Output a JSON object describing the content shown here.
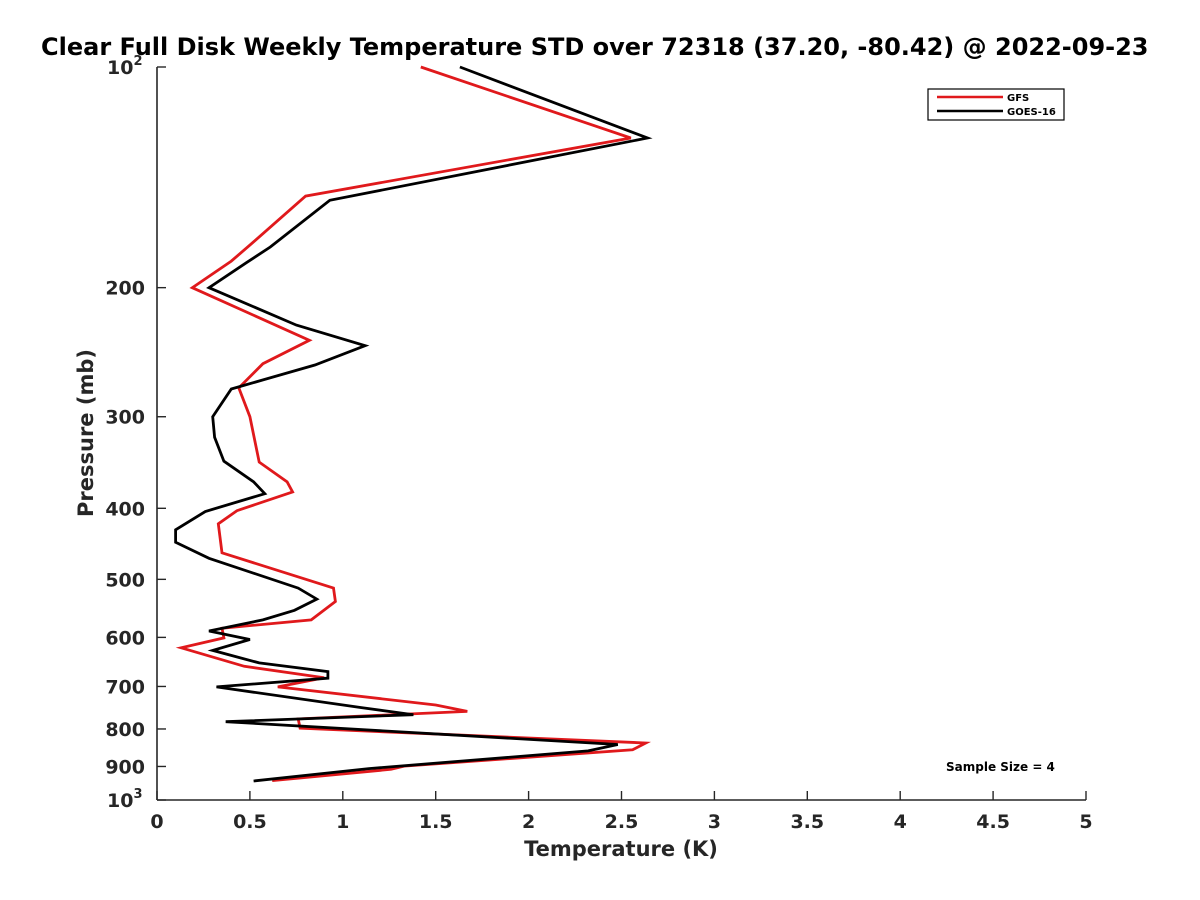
{
  "chart_data": {
    "type": "line",
    "title": "Clear Full Disk Weekly Temperature STD over 72318 (37.20, -80.42) @ 2022-09-23",
    "xlabel": "Temperature (K)",
    "ylabel": "Pressure (mb)",
    "xlim": [
      0,
      5
    ],
    "ylim": [
      100,
      1000
    ],
    "yscale": "log",
    "y_reversed": true,
    "x_ticks": [
      "0",
      "0.5",
      "1",
      "1.5",
      "2",
      "2.5",
      "3",
      "3.5",
      "4",
      "4.5",
      "5"
    ],
    "y_ticks": [
      {
        "value": 100,
        "base": "10",
        "exp": "2"
      },
      {
        "value": 200,
        "label": "200"
      },
      {
        "value": 300,
        "label": "300"
      },
      {
        "value": 400,
        "label": "400"
      },
      {
        "value": 500,
        "label": "500"
      },
      {
        "value": 600,
        "label": "600"
      },
      {
        "value": 700,
        "label": "700"
      },
      {
        "value": 800,
        "label": "800"
      },
      {
        "value": 900,
        "label": "900"
      },
      {
        "value": 1000,
        "base": "10",
        "exp": "3"
      }
    ],
    "grid": false,
    "legend_position": "top-right",
    "annotation": "Sample Size = 4",
    "series": [
      {
        "name": "GFS",
        "color": "#e0191c",
        "points": [
          {
            "x": 1.42,
            "p": 100
          },
          {
            "x": 2.55,
            "p": 125
          },
          {
            "x": 0.8,
            "p": 150
          },
          {
            "x": 0.5,
            "p": 175
          },
          {
            "x": 0.4,
            "p": 184
          },
          {
            "x": 0.19,
            "p": 200
          },
          {
            "x": 0.82,
            "p": 236
          },
          {
            "x": 0.57,
            "p": 254
          },
          {
            "x": 0.44,
            "p": 274
          },
          {
            "x": 0.5,
            "p": 300
          },
          {
            "x": 0.55,
            "p": 346
          },
          {
            "x": 0.7,
            "p": 368
          },
          {
            "x": 0.73,
            "p": 380
          },
          {
            "x": 0.43,
            "p": 403
          },
          {
            "x": 0.33,
            "p": 420
          },
          {
            "x": 0.35,
            "p": 460
          },
          {
            "x": 0.95,
            "p": 514
          },
          {
            "x": 0.96,
            "p": 536
          },
          {
            "x": 0.83,
            "p": 568
          },
          {
            "x": 0.35,
            "p": 583
          },
          {
            "x": 0.36,
            "p": 601
          },
          {
            "x": 0.13,
            "p": 620
          },
          {
            "x": 0.47,
            "p": 657
          },
          {
            "x": 0.9,
            "p": 681
          },
          {
            "x": 0.65,
            "p": 701
          },
          {
            "x": 1.5,
            "p": 742
          },
          {
            "x": 1.67,
            "p": 757
          },
          {
            "x": 0.76,
            "p": 775
          },
          {
            "x": 0.77,
            "p": 798
          },
          {
            "x": 2.63,
            "p": 836
          },
          {
            "x": 2.56,
            "p": 854
          },
          {
            "x": 1.33,
            "p": 899
          },
          {
            "x": 1.26,
            "p": 908
          },
          {
            "x": 0.62,
            "p": 941
          }
        ]
      },
      {
        "name": "GOES-16",
        "color": "#000000",
        "points": [
          {
            "x": 1.63,
            "p": 100
          },
          {
            "x": 2.64,
            "p": 125
          },
          {
            "x": 0.93,
            "p": 152
          },
          {
            "x": 0.61,
            "p": 176
          },
          {
            "x": 0.48,
            "p": 185
          },
          {
            "x": 0.28,
            "p": 200
          },
          {
            "x": 0.75,
            "p": 225
          },
          {
            "x": 1.12,
            "p": 240
          },
          {
            "x": 0.85,
            "p": 255
          },
          {
            "x": 0.4,
            "p": 275
          },
          {
            "x": 0.3,
            "p": 300
          },
          {
            "x": 0.31,
            "p": 320
          },
          {
            "x": 0.36,
            "p": 345
          },
          {
            "x": 0.52,
            "p": 368
          },
          {
            "x": 0.58,
            "p": 382
          },
          {
            "x": 0.26,
            "p": 404
          },
          {
            "x": 0.1,
            "p": 428
          },
          {
            "x": 0.1,
            "p": 445
          },
          {
            "x": 0.28,
            "p": 468
          },
          {
            "x": 0.76,
            "p": 514
          },
          {
            "x": 0.86,
            "p": 532
          },
          {
            "x": 0.74,
            "p": 551
          },
          {
            "x": 0.57,
            "p": 568
          },
          {
            "x": 0.28,
            "p": 588
          },
          {
            "x": 0.5,
            "p": 604
          },
          {
            "x": 0.3,
            "p": 625
          },
          {
            "x": 0.55,
            "p": 650
          },
          {
            "x": 0.92,
            "p": 668
          },
          {
            "x": 0.92,
            "p": 682
          },
          {
            "x": 0.32,
            "p": 701
          },
          {
            "x": 1.1,
            "p": 748
          },
          {
            "x": 1.38,
            "p": 765
          },
          {
            "x": 0.37,
            "p": 782
          },
          {
            "x": 2.48,
            "p": 840
          },
          {
            "x": 2.32,
            "p": 857
          },
          {
            "x": 1.14,
            "p": 906
          },
          {
            "x": 0.52,
            "p": 942
          }
        ]
      }
    ]
  }
}
